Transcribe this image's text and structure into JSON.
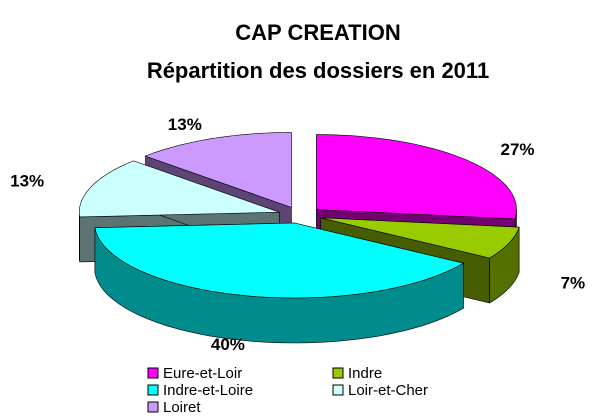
{
  "chart_data": {
    "type": "pie",
    "title": "CAP CREATION",
    "subtitle": "Répartition des dossiers en 2011",
    "categories": [
      "Eure-et-Loir",
      "Indre",
      "Indre-et-Loire",
      "Loir-et-Cher",
      "Loiret"
    ],
    "values": [
      27,
      7,
      40,
      13,
      13
    ],
    "value_labels": [
      "27%",
      "7%",
      "40%",
      "13%",
      "13%"
    ],
    "colors": [
      "#ff00ff",
      "#99cc00",
      "#00ffff",
      "#ccffff",
      "#cc99ff"
    ]
  }
}
